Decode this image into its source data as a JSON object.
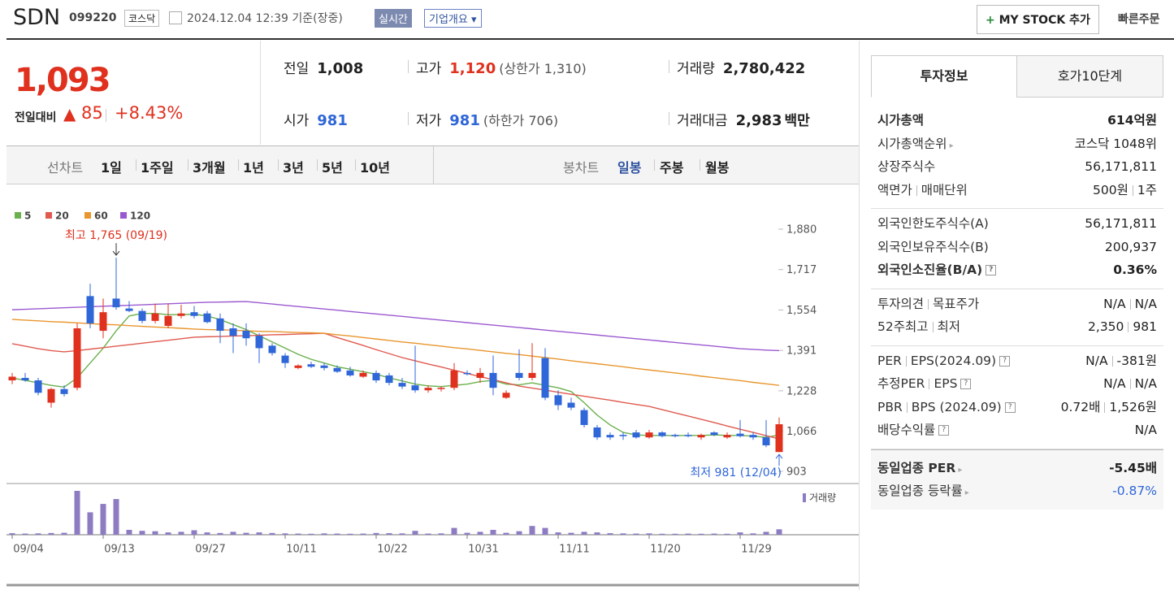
{
  "header": {
    "name": "SDN",
    "code": "099220",
    "market": "코스닥",
    "datetime": "2024.12.04 12:39 기준(장중)",
    "realtime": "실시간",
    "overview": "기업개요",
    "mystock": "MY STOCK 추가",
    "quick": "빠른주문"
  },
  "price": {
    "current": "1,093",
    "change_label": "전일대비",
    "change": "85",
    "rate": "+8.43%"
  },
  "summary": [
    {
      "label": "전일",
      "value": "1,008"
    },
    {
      "label": "고가",
      "value": "1,120",
      "extra": "(상한가 1,310)"
    },
    {
      "label": "거래량",
      "value": "2,780,422"
    },
    {
      "label": "시가",
      "value": "981"
    },
    {
      "label": "저가",
      "value": "981",
      "extra": "(하한가 706)"
    },
    {
      "label": "거래대금",
      "value": "2,983",
      "unit": "백만"
    }
  ],
  "chart_tabs": {
    "line_label": "선차트",
    "periods": [
      "1일",
      "1주일",
      "3개월",
      "1년",
      "3년",
      "5년",
      "10년"
    ],
    "candle_label": "봉차트",
    "candle_periods": [
      "일봉",
      "주봉",
      "월봉"
    ]
  },
  "chart_data": {
    "type": "candlestick",
    "categories": [
      "09/04",
      null,
      null,
      null,
      null,
      null,
      null,
      "09/13",
      null,
      null,
      null,
      null,
      null,
      null,
      "09/27",
      null,
      null,
      null,
      null,
      null,
      null,
      "10/11",
      null,
      null,
      null,
      null,
      null,
      null,
      "10/22",
      null,
      null,
      null,
      null,
      null,
      null,
      "10/31",
      null,
      null,
      null,
      null,
      null,
      null,
      "11/11",
      null,
      null,
      null,
      null,
      null,
      null,
      "11/20",
      null,
      null,
      null,
      null,
      null,
      null,
      "11/29",
      null,
      null,
      null
    ],
    "open": [
      1270,
      1280,
      1270,
      1180,
      1235,
      1240,
      1610,
      1470,
      1600,
      1560,
      1550,
      1510,
      1490,
      1530,
      1545,
      1540,
      1520,
      1480,
      1470,
      1450,
      1410,
      1370,
      1320,
      1335,
      1330,
      1320,
      1310,
      1285,
      1300,
      1290,
      1260,
      1250,
      1230,
      1235,
      1240,
      1300,
      1280,
      1300,
      1200,
      1300,
      1280,
      1360,
      1210,
      1180,
      1150,
      1080,
      1050,
      1050,
      1060,
      1040,
      1060,
      1050,
      1050,
      1040,
      1060,
      1040,
      1055,
      1050,
      1040,
      981
    ],
    "high": [
      1300,
      1300,
      1280,
      1240,
      1250,
      1500,
      1660,
      1600,
      1765,
      1590,
      1560,
      1580,
      1580,
      1575,
      1570,
      1550,
      1540,
      1500,
      1500,
      1460,
      1420,
      1380,
      1335,
      1345,
      1340,
      1330,
      1325,
      1310,
      1310,
      1300,
      1280,
      1410,
      1250,
      1245,
      1340,
      1310,
      1320,
      1370,
      1230,
      1395,
      1420,
      1400,
      1230,
      1200,
      1160,
      1090,
      1060,
      1060,
      1070,
      1070,
      1065,
      1055,
      1060,
      1055,
      1065,
      1060,
      1110,
      1060,
      1110,
      1120
    ],
    "low": [
      1255,
      1265,
      1210,
      1160,
      1205,
      1230,
      1480,
      1440,
      1555,
      1545,
      1500,
      1500,
      1480,
      1520,
      1520,
      1500,
      1420,
      1380,
      1410,
      1340,
      1370,
      1320,
      1315,
      1320,
      1310,
      1300,
      1285,
      1280,
      1260,
      1250,
      1235,
      1220,
      1220,
      1225,
      1230,
      1290,
      1260,
      1210,
      1195,
      1270,
      1270,
      1190,
      1150,
      1150,
      1080,
      1030,
      1030,
      1030,
      1035,
      1035,
      1040,
      1040,
      1040,
      1030,
      1045,
      1035,
      1040,
      1030,
      1000,
      981
    ],
    "close": [
      1285,
      1270,
      1220,
      1235,
      1215,
      1480,
      1500,
      1545,
      1565,
      1550,
      1510,
      1540,
      1530,
      1540,
      1530,
      1505,
      1470,
      1450,
      1440,
      1400,
      1380,
      1340,
      1330,
      1325,
      1320,
      1305,
      1290,
      1300,
      1270,
      1260,
      1245,
      1230,
      1240,
      1240,
      1310,
      1295,
      1300,
      1240,
      1220,
      1280,
      1300,
      1200,
      1170,
      1160,
      1090,
      1040,
      1040,
      1045,
      1040,
      1060,
      1045,
      1045,
      1045,
      1050,
      1050,
      1050,
      1045,
      1040,
      1008,
      1093
    ],
    "up_color": "#e0301e",
    "down_color": "#2f66d8",
    "moving_averages": [
      {
        "name": "5",
        "color": "#6ab04c",
        "values": [
          1280,
          1270,
          1260,
          1250,
          1243,
          1280,
          1340,
          1400,
          1470,
          1530,
          1540,
          1540,
          1535,
          1535,
          1537,
          1530,
          1515,
          1495,
          1475,
          1450,
          1425,
          1400,
          1375,
          1355,
          1340,
          1325,
          1315,
          1305,
          1295,
          1280,
          1268,
          1255,
          1248,
          1245,
          1250,
          1255,
          1265,
          1270,
          1255,
          1252,
          1260,
          1250,
          1240,
          1225,
          1180,
          1130,
          1090,
          1060,
          1050,
          1048,
          1048,
          1047,
          1048,
          1048,
          1050,
          1048,
          1048,
          1045,
          1040,
          1050
        ]
      },
      {
        "name": "20",
        "color": "#e05a4f",
        "values": [
          1418,
          1408,
          1398,
          1390,
          1385,
          1390,
          1396,
          1402,
          1408,
          1414,
          1420,
          1426,
          1432,
          1438,
          1444,
          1446,
          1447,
          1449,
          1450,
          1452,
          1454,
          1455,
          1457,
          1458,
          1460,
          1443,
          1427,
          1411,
          1394,
          1378,
          1362,
          1349,
          1336,
          1324,
          1311,
          1298,
          1285,
          1273,
          1260,
          1247,
          1239,
          1231,
          1222,
          1214,
          1206,
          1198,
          1190,
          1181,
          1173,
          1165,
          1152,
          1139,
          1126,
          1113,
          1100,
          1086,
          1073,
          1060,
          1047,
          1034
        ]
      },
      {
        "name": "60",
        "color": "#e8962e",
        "values": [
          1516,
          1513,
          1510,
          1507,
          1505,
          1502,
          1499,
          1496,
          1494,
          1491,
          1488,
          1485,
          1483,
          1480,
          1477,
          1475,
          1474,
          1472,
          1470,
          1468,
          1467,
          1465,
          1463,
          1462,
          1460,
          1454,
          1449,
          1443,
          1437,
          1431,
          1425,
          1420,
          1414,
          1408,
          1402,
          1397,
          1391,
          1385,
          1379,
          1374,
          1368,
          1362,
          1356,
          1349,
          1343,
          1337,
          1331,
          1325,
          1318,
          1312,
          1306,
          1300,
          1294,
          1287,
          1281,
          1275,
          1269,
          1262,
          1256,
          1250
        ]
      },
      {
        "name": "120",
        "color": "#9b59d0",
        "values": [
          1555,
          1557,
          1559,
          1561,
          1563,
          1565,
          1567,
          1569,
          1571,
          1573,
          1575,
          1577,
          1579,
          1581,
          1583,
          1585,
          1586,
          1587,
          1588,
          1583,
          1578,
          1573,
          1568,
          1563,
          1558,
          1553,
          1548,
          1543,
          1538,
          1533,
          1528,
          1523,
          1518,
          1513,
          1508,
          1503,
          1498,
          1493,
          1488,
          1483,
          1478,
          1473,
          1468,
          1463,
          1458,
          1453,
          1448,
          1443,
          1438,
          1433,
          1428,
          1423,
          1418,
          1413,
          1408,
          1403,
          1398,
          1395,
          1392,
          1390
        ]
      }
    ],
    "ylim": [
      903,
      1880
    ],
    "yticks": [
      903,
      {
        "value": 1066,
        "label": "1,066"
      },
      {
        "value": 1228,
        "label": "1,228"
      },
      {
        "value": 1391,
        "label": "1,391"
      },
      {
        "value": 1554,
        "label": "1,554"
      },
      {
        "value": 1717,
        "label": "1,717"
      },
      {
        "value": 1880,
        "label": "1,880"
      }
    ],
    "annotations": [
      {
        "text": "최고 1,765 (09/19)",
        "index": 8,
        "at": "high"
      },
      {
        "text": "최저 981 (12/04)",
        "index": 59,
        "at": "low"
      }
    ],
    "volume": {
      "name": "거래량",
      "color": "#8e7cc3",
      "ylim": [
        0,
        25000000
      ],
      "values": [
        800000,
        600000,
        700000,
        900000,
        1000000,
        22500000,
        11500000,
        15800000,
        18300000,
        2500000,
        2000000,
        1800000,
        1200000,
        1500000,
        2300000,
        1200000,
        900000,
        1500000,
        1000000,
        1200000,
        900000,
        700000,
        600000,
        500000,
        700000,
        600000,
        500000,
        600000,
        900000,
        800000,
        700000,
        2000000,
        600000,
        700000,
        3500000,
        1000000,
        1500000,
        2500000,
        1000000,
        1800000,
        4500000,
        3500000,
        1200000,
        1000000,
        1500000,
        1200000,
        800000,
        700000,
        600000,
        700000,
        500000,
        500000,
        600000,
        500000,
        600000,
        500000,
        1200000,
        700000,
        1500000,
        2780422
      ]
    }
  },
  "invest": {
    "tabs": [
      "투자정보",
      "호가10단계"
    ],
    "sections": [
      [
        {
          "label": [
            "시가총액"
          ],
          "value": [
            "614억원"
          ]
        },
        {
          "label": [
            "시가총액순위"
          ],
          "value": [
            "코스닥 1048위"
          ]
        },
        {
          "label": [
            "상장주식수"
          ],
          "value": [
            "56,171,811"
          ]
        },
        {
          "label": [
            "액면가",
            "매매단위"
          ],
          "value": [
            "500원",
            "1주"
          ]
        }
      ],
      [
        {
          "label": [
            "외국인한도주식수(A)"
          ],
          "value": [
            "56,171,811"
          ]
        },
        {
          "label": [
            "외국인보유주식수(B)"
          ],
          "value": [
            "200,937"
          ]
        },
        {
          "label": [
            "외국인소진율(B/A)"
          ],
          "value": [
            "0.36%"
          ]
        }
      ],
      [
        {
          "label": [
            "투자의견",
            "목표주가"
          ],
          "value": [
            "N/A",
            "N/A"
          ]
        },
        {
          "label": [
            "52주최고",
            "최저"
          ],
          "value": [
            "2,350",
            "981"
          ]
        }
      ],
      [
        {
          "label": [
            "PER",
            "EPS(2024.09)"
          ],
          "value": [
            "N/A",
            "-381원"
          ]
        },
        {
          "label": [
            "추정PER",
            "EPS"
          ],
          "value": [
            "N/A",
            "N/A"
          ]
        },
        {
          "label": [
            "PBR",
            "BPS (2024.09)"
          ],
          "value": [
            "0.72배",
            "1,526원"
          ]
        },
        {
          "label": [
            "배당수익률"
          ],
          "value": [
            "N/A"
          ]
        }
      ],
      [
        {
          "label": [
            "동일업종 PER"
          ],
          "value": [
            "-5.45배"
          ]
        },
        {
          "label": [
            "동일업종 등락률"
          ],
          "value": [
            "-0.87%"
          ]
        }
      ]
    ]
  }
}
